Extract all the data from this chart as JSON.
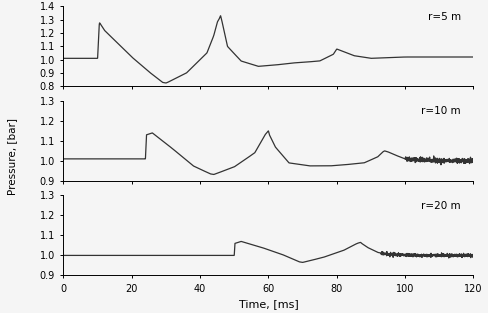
{
  "title": "",
  "xlabel": "Time, [ms]",
  "ylabel": "Pressure, [bar]",
  "line_color": "#333333",
  "line_width": 0.9,
  "background_color": "#f5f5f5",
  "subplots": [
    {
      "label": "r=5 m",
      "ylim": [
        0.8,
        1.4
      ],
      "yticks": [
        0.8,
        0.9,
        1.0,
        1.1,
        1.2,
        1.3,
        1.4
      ],
      "xlim": [
        0,
        120
      ],
      "xticks": [
        0,
        20,
        40,
        60,
        80,
        100,
        120
      ]
    },
    {
      "label": "r=10 m",
      "ylim": [
        0.9,
        1.3
      ],
      "yticks": [
        0.9,
        1.0,
        1.1,
        1.2,
        1.3
      ],
      "xlim": [
        0,
        120
      ],
      "xticks": [
        0,
        20,
        40,
        60,
        80,
        100,
        120
      ]
    },
    {
      "label": "r=20 m",
      "ylim": [
        0.9,
        1.3
      ],
      "yticks": [
        0.9,
        1.0,
        1.1,
        1.2,
        1.3
      ],
      "xlim": [
        0,
        120
      ],
      "xticks": [
        0,
        20,
        40,
        60,
        80,
        100,
        120
      ]
    }
  ]
}
